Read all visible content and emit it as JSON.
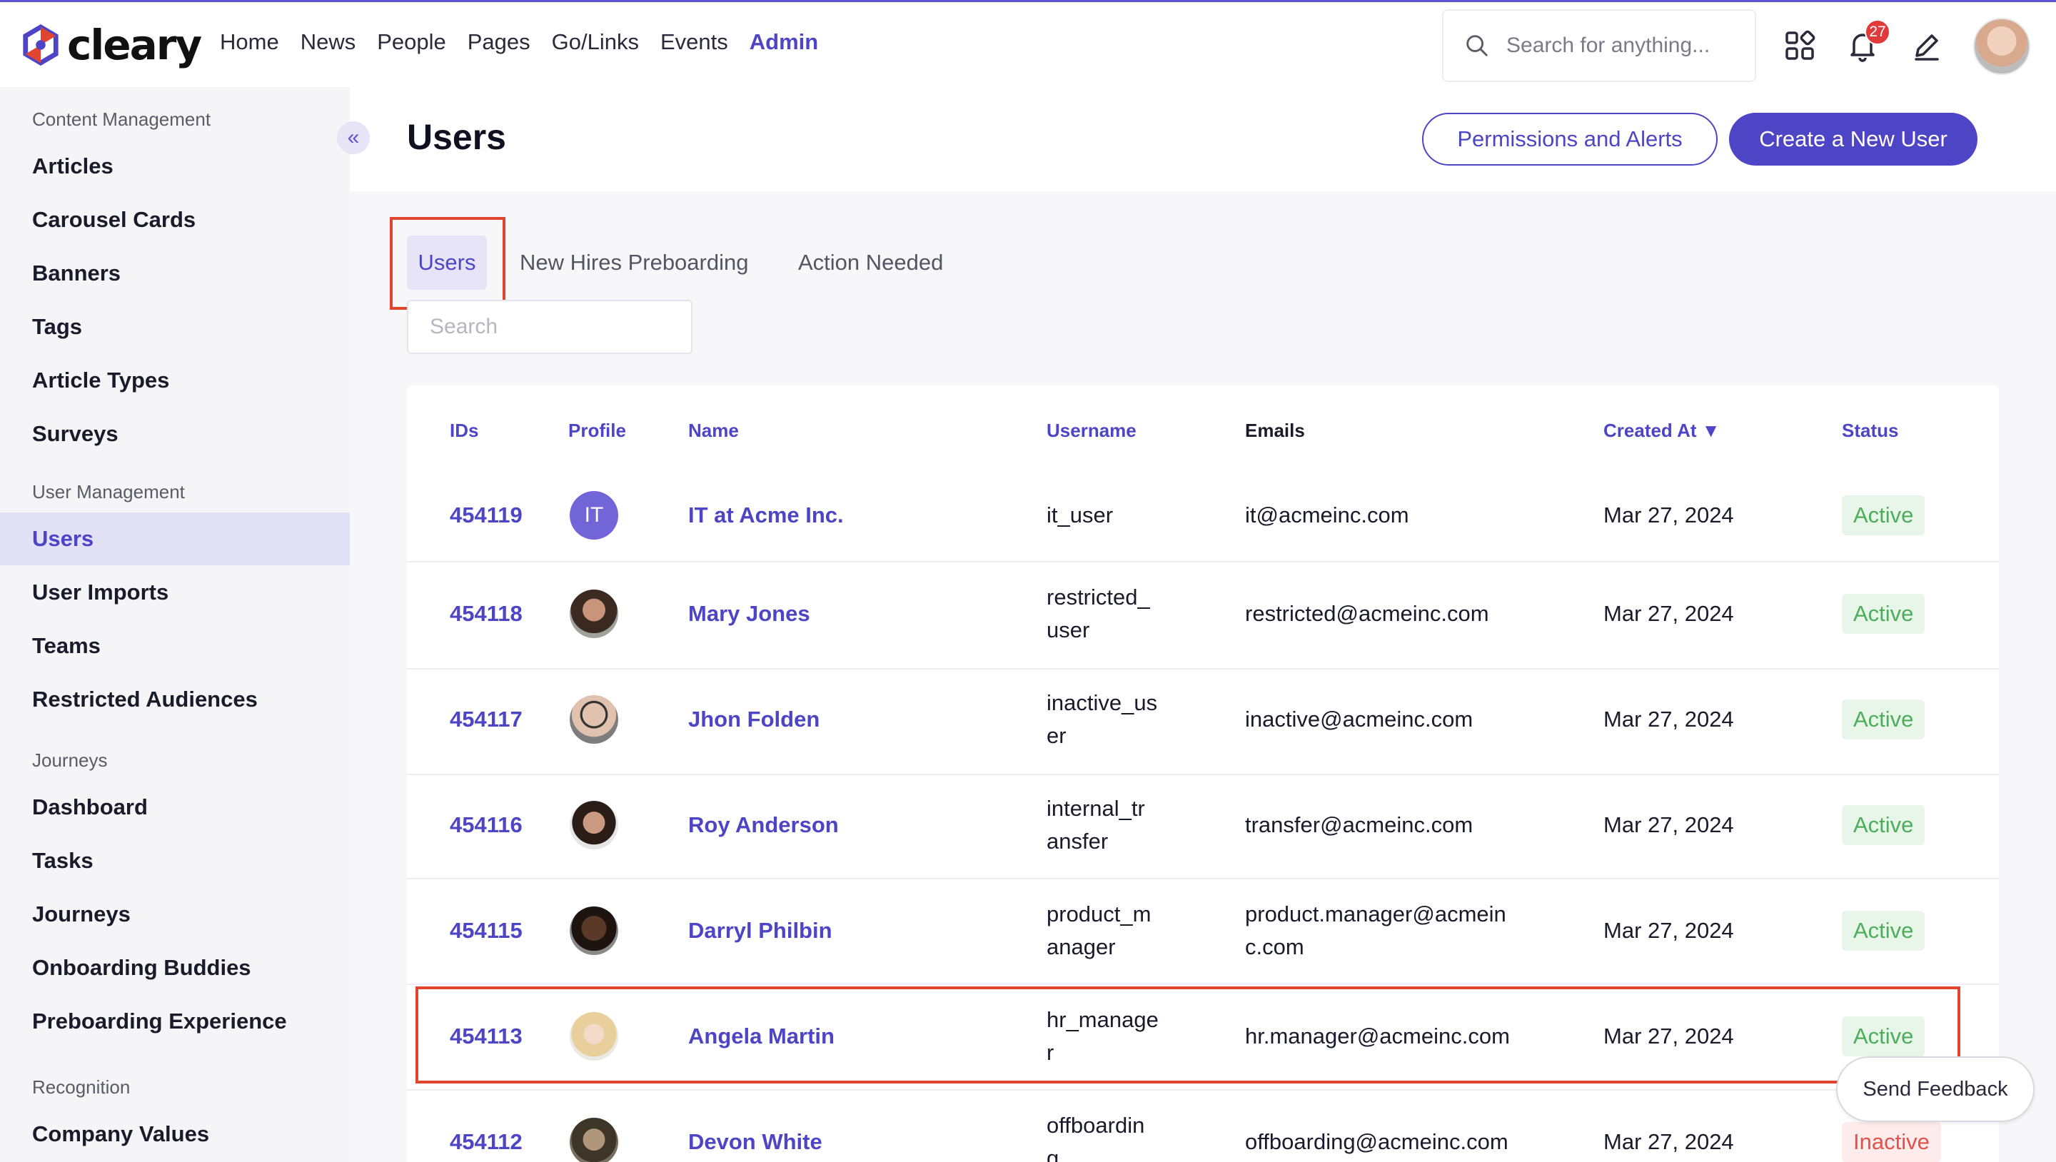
{
  "brand": {
    "name": "cleary"
  },
  "nav": {
    "items": [
      "Home",
      "News",
      "People",
      "Pages",
      "Go/Links",
      "Events",
      "Admin"
    ],
    "active": "Admin"
  },
  "search": {
    "placeholder": "Search for anything..."
  },
  "notifications": {
    "count": "27"
  },
  "icons": [
    "search-icon",
    "apps-icon",
    "bell-icon",
    "edit-icon",
    "chevrons-left-icon"
  ],
  "colors": {
    "accent": "#4e44c6",
    "active_status": "#4cae5a",
    "inactive_status": "#e0524a",
    "highlight": "#e2452f"
  },
  "sidebar": {
    "sections": [
      {
        "title": "Content Management",
        "items": [
          "Articles",
          "Carousel Cards",
          "Banners",
          "Tags",
          "Article Types",
          "Surveys"
        ]
      },
      {
        "title": "User Management",
        "items": [
          "Users",
          "User Imports",
          "Teams",
          "Restricted Audiences"
        ]
      },
      {
        "title": "Journeys",
        "items": [
          "Dashboard",
          "Tasks",
          "Journeys",
          "Onboarding Buddies",
          "Preboarding Experience"
        ]
      },
      {
        "title": "Recognition",
        "items": [
          "Company Values"
        ]
      }
    ],
    "active_item": "Users",
    "collapse_label": "«"
  },
  "page": {
    "title": "Users",
    "permissions_button": "Permissions and Alerts",
    "create_button": "Create a New User"
  },
  "tabs": {
    "items": [
      "Users",
      "New Hires Preboarding",
      "Action Needed"
    ],
    "active": "Users"
  },
  "table_search": {
    "placeholder": "Search"
  },
  "table": {
    "headers": {
      "ids": "IDs",
      "profile": "Profile",
      "name": "Name",
      "username": "Username",
      "emails": "Emails",
      "created_at": "Created At",
      "sort_indicator": "▼",
      "status": "Status"
    },
    "rows": [
      {
        "id": "454119",
        "initials": "IT",
        "name": "IT at Acme Inc.",
        "username_lines": [
          "it_user"
        ],
        "email_lines": [
          "it@acmeinc.com"
        ],
        "created": "Mar 27, 2024",
        "status": "Active"
      },
      {
        "id": "454118",
        "initials": "",
        "name": "Mary Jones",
        "username_lines": [
          "restricted_",
          "user"
        ],
        "email_lines": [
          "restricted@acmeinc.com"
        ],
        "created": "Mar 27, 2024",
        "status": "Active"
      },
      {
        "id": "454117",
        "initials": "",
        "name": "Jhon Folden",
        "username_lines": [
          "inactive_us",
          "er"
        ],
        "email_lines": [
          "inactive@acmeinc.com"
        ],
        "created": "Mar 27, 2024",
        "status": "Active"
      },
      {
        "id": "454116",
        "initials": "",
        "name": "Roy Anderson",
        "username_lines": [
          "internal_tr",
          "ansfer"
        ],
        "email_lines": [
          "transfer@acmeinc.com"
        ],
        "created": "Mar 27, 2024",
        "status": "Active"
      },
      {
        "id": "454115",
        "initials": "",
        "name": "Darryl Philbin",
        "username_lines": [
          "product_m",
          "anager"
        ],
        "email_lines": [
          "product.manager@acmein",
          "c.com"
        ],
        "created": "Mar 27, 2024",
        "status": "Active"
      },
      {
        "id": "454113",
        "initials": "",
        "name": "Angela Martin",
        "username_lines": [
          "hr_manage",
          "r"
        ],
        "email_lines": [
          "hr.manager@acmeinc.com"
        ],
        "created": "Mar 27, 2024",
        "status": "Active"
      },
      {
        "id": "454112",
        "initials": "",
        "name": "Devon White",
        "username_lines": [
          "offboardin",
          "g"
        ],
        "email_lines": [
          "offboarding@acmeinc.com"
        ],
        "created": "Mar 27, 2024",
        "status": "Inactive"
      }
    ]
  },
  "feedback": {
    "label": "Send Feedback"
  }
}
